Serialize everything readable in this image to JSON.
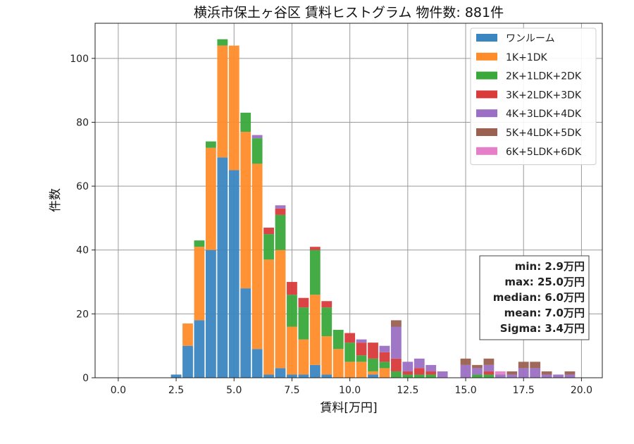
{
  "chart_data": {
    "type": "bar",
    "stacked": true,
    "title": "横浜市保土ヶ谷区 賃料ヒストグラム 物件数: 881件",
    "xlabel": "賃料[万円]",
    "ylabel": "件数",
    "xlim": [
      -1.0,
      20.9
    ],
    "ylim": [
      0,
      111
    ],
    "xticks": [
      "0.0",
      "2.5",
      "5.0",
      "7.5",
      "10.0",
      "12.5",
      "15.0",
      "17.5",
      "20.0"
    ],
    "yticks": [
      "0",
      "20",
      "40",
      "60",
      "80",
      "100"
    ],
    "bin_width": 0.5,
    "grid": true,
    "legend_position": "top-right",
    "x": [
      2.5,
      3.0,
      3.5,
      4.0,
      4.5,
      5.0,
      5.5,
      6.0,
      6.5,
      7.0,
      7.5,
      8.0,
      8.5,
      9.0,
      9.5,
      10.0,
      10.5,
      11.0,
      11.5,
      12.0,
      12.5,
      13.0,
      13.5,
      14.0,
      15.0,
      15.5,
      16.0,
      16.5,
      17.0,
      17.5,
      18.0,
      18.5,
      19.0,
      19.5
    ],
    "series": [
      {
        "name": "ワンルーム",
        "color": "#3a86c0",
        "values": [
          1,
          10,
          18,
          40,
          69,
          65,
          28,
          9,
          1,
          3,
          1,
          1,
          4,
          1,
          0,
          0,
          0,
          1,
          0,
          0,
          0,
          0,
          0,
          0,
          0,
          0,
          0,
          0,
          0,
          0,
          0,
          0,
          0,
          0
        ]
      },
      {
        "name": "1K+1DK",
        "color": "#ff8c2a",
        "values": [
          0,
          7,
          23,
          32,
          35,
          39,
          49,
          58,
          36,
          37,
          15,
          11,
          22,
          12,
          9,
          5,
          5,
          1,
          3,
          0,
          0,
          0,
          0,
          0,
          0,
          0,
          0,
          0,
          0,
          0,
          0,
          0,
          0,
          0
        ]
      },
      {
        "name": "2K+1LDK+2DK",
        "color": "#3aa83a",
        "values": [
          0,
          0,
          2,
          2,
          2,
          0,
          6,
          8,
          8,
          11,
          10,
          10,
          14,
          9,
          6,
          6,
          2,
          4,
          2,
          2,
          1,
          1,
          1,
          0,
          0,
          1,
          1,
          0,
          0,
          0,
          0,
          0,
          0,
          0
        ]
      },
      {
        "name": "3K+2LDK+3DK",
        "color": "#d93a3a",
        "values": [
          0,
          0,
          0,
          0,
          0,
          0,
          0,
          0,
          2,
          2,
          4,
          3,
          1,
          2,
          0,
          3,
          4,
          5,
          3,
          4,
          1,
          2,
          1,
          0,
          0,
          0,
          1,
          0,
          0,
          0,
          0,
          0,
          0,
          0
        ]
      },
      {
        "name": "4K+3LDK+4DK",
        "color": "#9b6fc4",
        "values": [
          0,
          0,
          0,
          0,
          0,
          0,
          0,
          1,
          0,
          1,
          0,
          0,
          0,
          0,
          0,
          0,
          1,
          0,
          2,
          10,
          3,
          3,
          2,
          2,
          4,
          2,
          2,
          1,
          1,
          3,
          3,
          1,
          1,
          1
        ]
      },
      {
        "name": "5K+4LDK+5DK",
        "color": "#9a6050",
        "values": [
          0,
          0,
          0,
          0,
          0,
          0,
          0,
          0,
          0,
          0,
          0,
          0,
          0,
          0,
          0,
          0,
          0,
          0,
          0,
          2,
          0,
          0,
          0,
          0,
          2,
          1,
          2,
          0,
          1,
          2,
          2,
          1,
          0,
          1
        ]
      },
      {
        "name": "6K+5LDK+6DK",
        "color": "#e580c8",
        "values": [
          0,
          0,
          0,
          0,
          0,
          0,
          0,
          0,
          0,
          0,
          0,
          0,
          0,
          0,
          0,
          0,
          0,
          0,
          0,
          0,
          0,
          0,
          0,
          0,
          0,
          0,
          0,
          1,
          0,
          0,
          0,
          0,
          0,
          0
        ]
      }
    ],
    "stats": [
      "min: 2.9万円",
      "max: 25.0万円",
      "median: 6.0万円",
      "mean: 7.0万円",
      "Sigma: 3.4万円"
    ]
  }
}
